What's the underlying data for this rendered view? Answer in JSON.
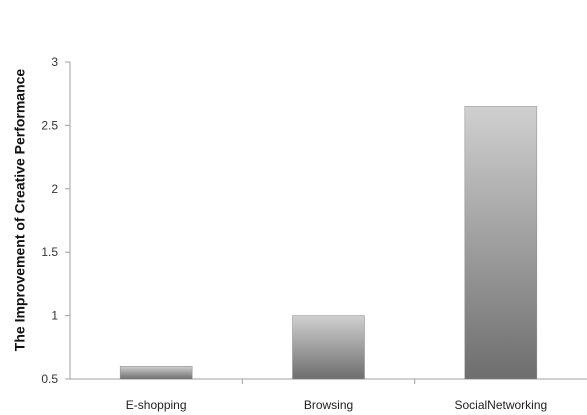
{
  "chart_data": {
    "type": "bar",
    "title": "",
    "xlabel": "",
    "ylabel": "The Improvement of Creative Performance",
    "categories": [
      "E-shopping",
      "Browsing",
      "SocialNetworking"
    ],
    "values": [
      0.6,
      1.0,
      2.65
    ],
    "ylim": [
      0.5,
      3
    ],
    "yticks": [
      "0.5",
      "1",
      "1.5",
      "2",
      "2.5",
      "3"
    ],
    "grid": false,
    "legend": "none",
    "colors": {
      "bar_top": "#d0d0d0",
      "bar_bottom": "#6e6e6e",
      "axis": "#a0a0a0"
    }
  }
}
